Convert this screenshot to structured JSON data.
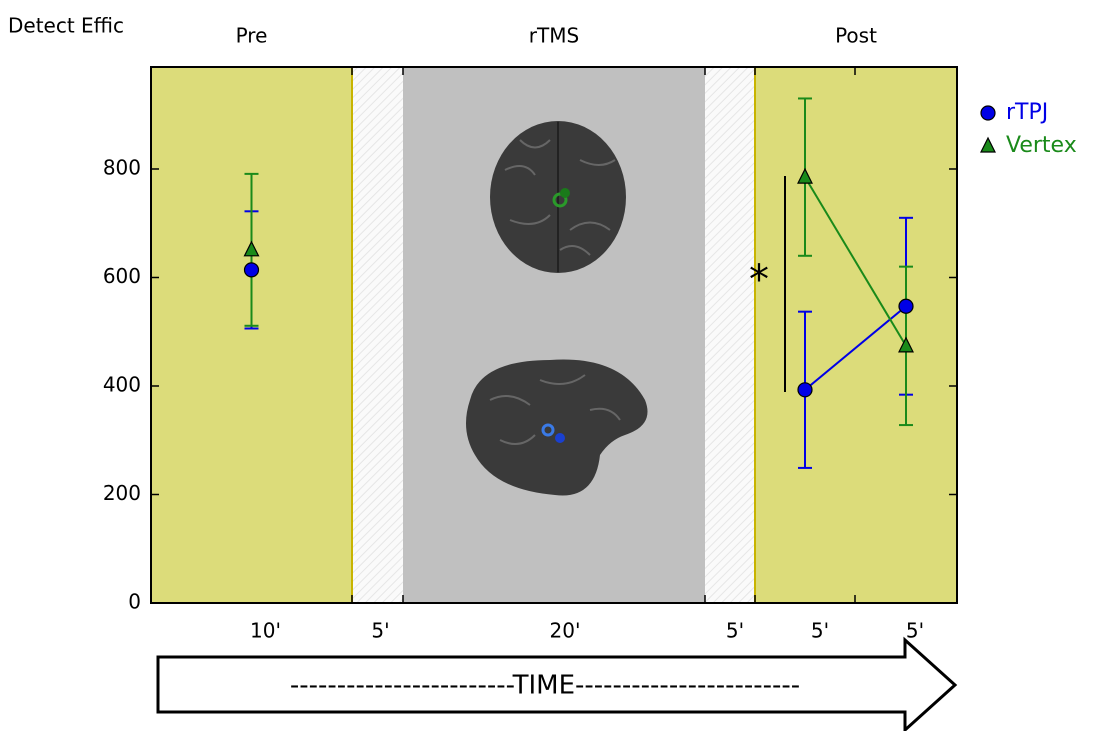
{
  "chart_data": {
    "type": "errorbar",
    "y_label": "Detect Effic",
    "segment_titles": [
      "Pre",
      "rTMS",
      "Post"
    ],
    "categories": [
      "10'",
      "5'",
      "20'",
      "5'",
      "5'",
      "5'"
    ],
    "ylim": [
      0,
      988
    ],
    "yticks": [
      0,
      200,
      400,
      600,
      800
    ],
    "series": [
      {
        "name": "rTPJ",
        "color": "#0000e6",
        "marker": "circle",
        "values": [
          614,
          null,
          null,
          null,
          393,
          547
        ],
        "errors": [
          108,
          null,
          null,
          null,
          144,
          163
        ]
      },
      {
        "name": "Vertex",
        "color": "#1a8a1a",
        "marker": "triangle",
        "values": [
          651,
          null,
          null,
          null,
          785,
          474
        ],
        "errors": [
          140,
          null,
          null,
          null,
          145,
          146
        ]
      }
    ],
    "annotation": "*",
    "time_label": "------------------------TIME------------------------"
  }
}
